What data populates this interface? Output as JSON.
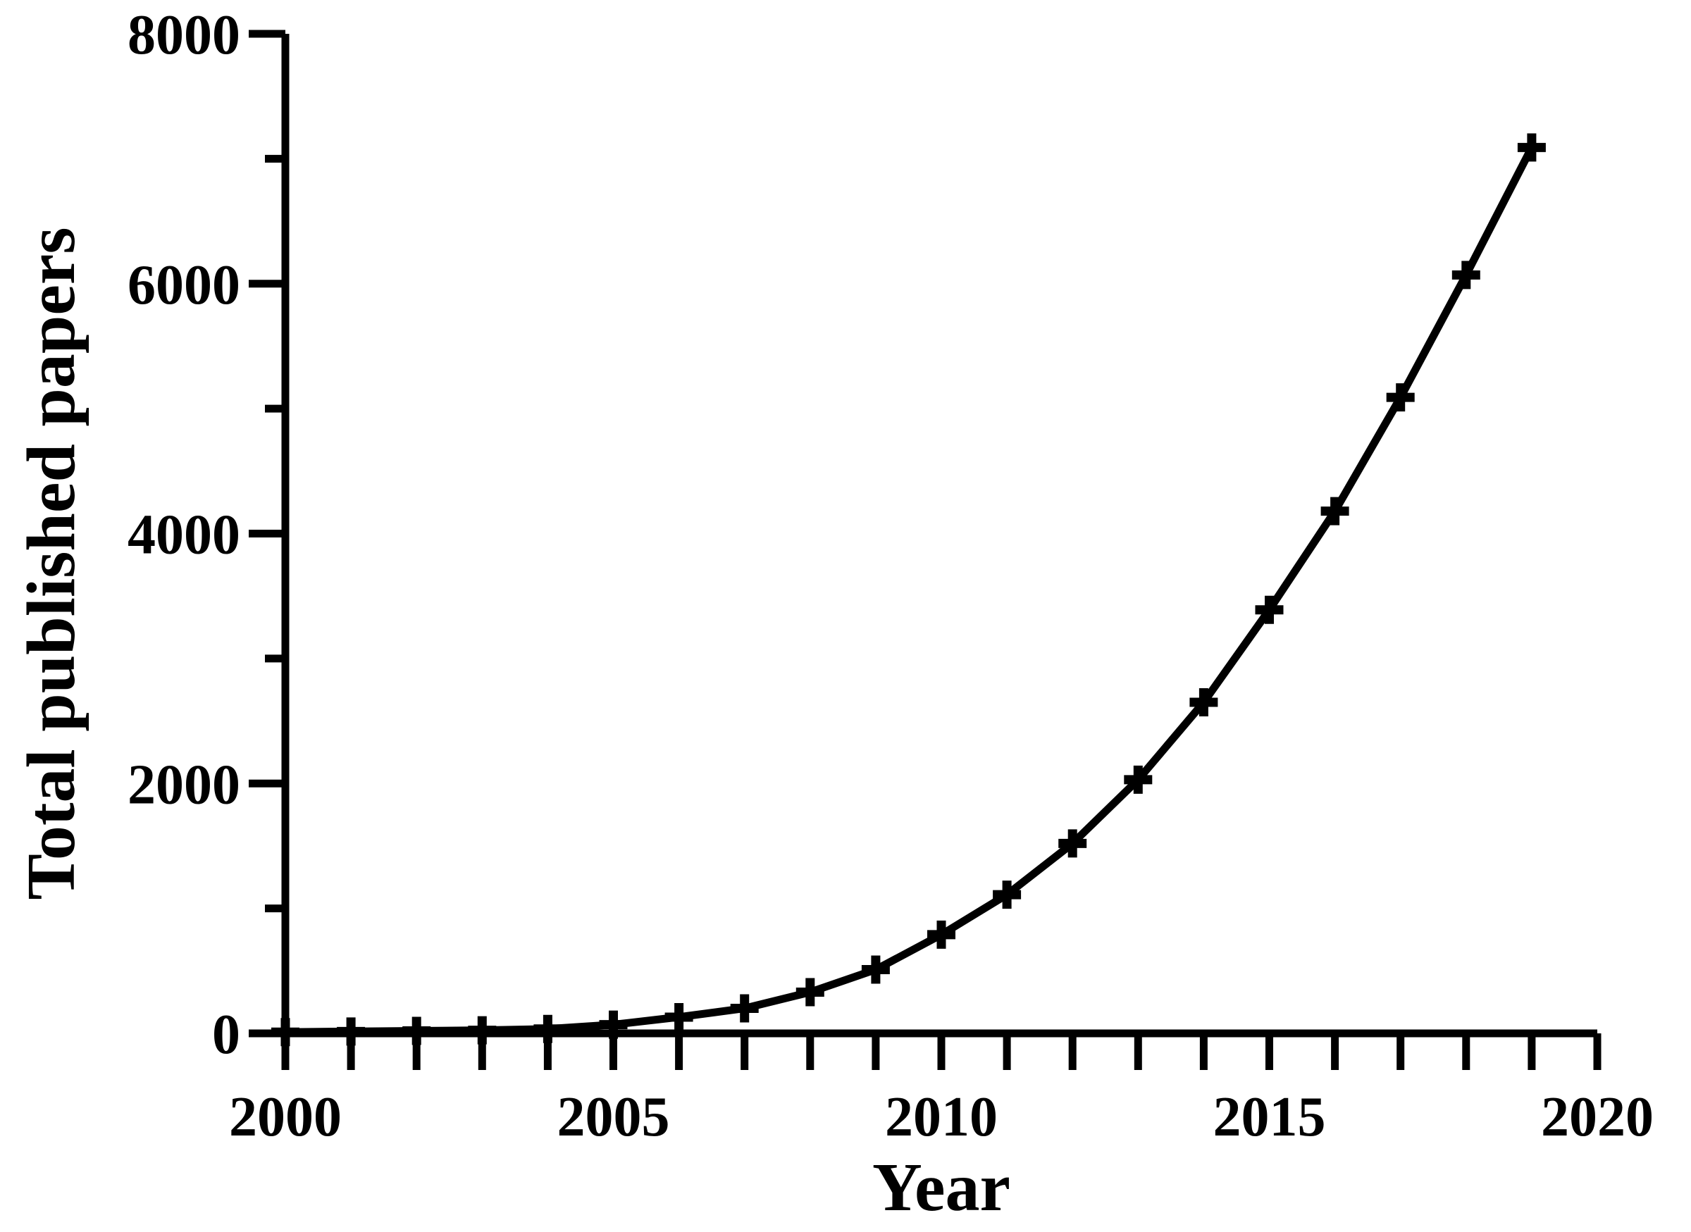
{
  "figure": {
    "background": "#ffffff",
    "ink_color": "#000000"
  },
  "chart_data": {
    "type": "line",
    "title": "",
    "xlabel": "Year",
    "ylabel": "Total published papers",
    "x": [
      2000,
      2001,
      2002,
      2003,
      2004,
      2005,
      2006,
      2007,
      2008,
      2009,
      2010,
      2011,
      2012,
      2013,
      2014,
      2015,
      2016,
      2017,
      2018,
      2019
    ],
    "series": [
      {
        "name": "Total published papers",
        "values": [
          10,
          15,
          20,
          25,
          35,
          70,
          130,
          200,
          330,
          510,
          790,
          1110,
          1520,
          2030,
          2650,
          3390,
          4180,
          5090,
          6070,
          7090
        ]
      }
    ],
    "xlim": [
      2000,
      2020
    ],
    "ylim": [
      0,
      8000
    ],
    "x_tick_values": [
      2000,
      2001,
      2002,
      2003,
      2004,
      2005,
      2006,
      2007,
      2008,
      2009,
      2010,
      2011,
      2012,
      2013,
      2014,
      2015,
      2016,
      2017,
      2018,
      2019,
      2020
    ],
    "x_labeled_ticks": [
      {
        "value": 2000,
        "label": "2000"
      },
      {
        "value": 2005,
        "label": "2005"
      },
      {
        "value": 2010,
        "label": "2010"
      },
      {
        "value": 2015,
        "label": "2015"
      },
      {
        "value": 2020,
        "label": "2020"
      }
    ],
    "y_labeled_ticks": [
      {
        "value": 0,
        "label": "0"
      },
      {
        "value": 2000,
        "label": "2000"
      },
      {
        "value": 4000,
        "label": "4000"
      },
      {
        "value": 6000,
        "label": "6000"
      },
      {
        "value": 8000,
        "label": "8000"
      }
    ],
    "y_minor_tick_values": [
      1000,
      3000,
      5000,
      7000
    ],
    "grid": false,
    "legend_position": "none",
    "marker": "plus",
    "line_color": "#000000"
  }
}
